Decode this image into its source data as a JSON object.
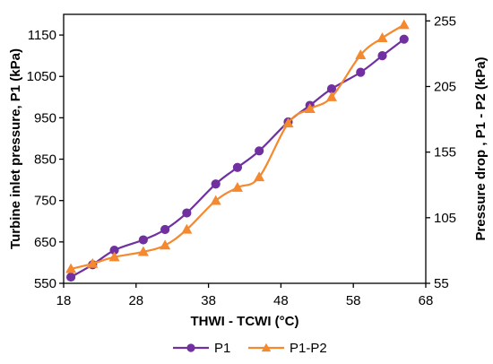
{
  "chart_data": {
    "type": "line",
    "xlabel": "THWI - TCWI (°C)",
    "ylabel_left": "Turbine inlet pressure, P1 (kPa)",
    "ylabel_right": "Pressure drop , P1 - P2 (kPa)",
    "xlim": [
      18,
      68
    ],
    "ylim_left": [
      550,
      1200
    ],
    "ylim_right": [
      55,
      260
    ],
    "x_ticks": [
      "18",
      "28",
      "38",
      "48",
      "58",
      "68"
    ],
    "y_left_ticks": [
      "550",
      "650",
      "750",
      "850",
      "950",
      "1050",
      "1150"
    ],
    "y_right_ticks": [
      "55",
      "105",
      "155",
      "205",
      "255"
    ],
    "grid": false,
    "legend_position": "bottom",
    "series": [
      {
        "name": "P1",
        "axis": "left",
        "color": "#7030A0",
        "marker": "circle",
        "x": [
          19,
          22,
          25,
          29,
          32,
          35,
          39,
          42,
          45,
          49,
          52,
          55,
          59,
          62,
          65
        ],
        "y": [
          565,
          595,
          630,
          655,
          680,
          720,
          790,
          830,
          870,
          940,
          980,
          1020,
          1060,
          1100,
          1140
        ]
      },
      {
        "name": "P1-P2",
        "axis": "right",
        "color": "#F4892F",
        "marker": "triangle",
        "x": [
          19,
          22,
          25,
          29,
          32,
          35,
          39,
          42,
          45,
          49,
          52,
          55,
          59,
          62,
          65
        ],
        "y": [
          66,
          70,
          75,
          79,
          84,
          96,
          118,
          128,
          136,
          177,
          188,
          197,
          229,
          242,
          252
        ]
      }
    ]
  }
}
